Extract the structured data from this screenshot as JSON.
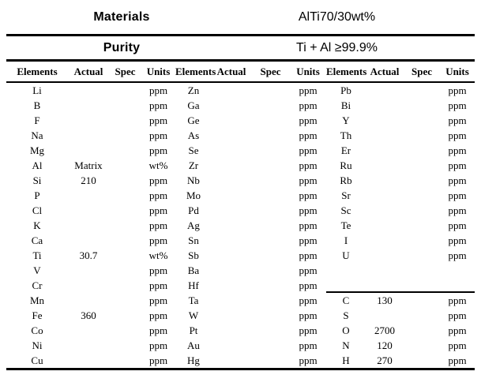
{
  "header": {
    "materials_label": "Materials",
    "materials_value": "AlTi70/30wt%",
    "purity_label": "Purity",
    "purity_value": "Ti + Al ≥99.9%"
  },
  "table": {
    "column_headers": [
      "Elements",
      "Actual",
      "Spec",
      "Units",
      "Elements",
      "Actual",
      "Spec",
      "Units",
      "Elements",
      "Actual",
      "Spec",
      "Units"
    ],
    "rows": [
      [
        "Li",
        "",
        "",
        "ppm",
        "Zn",
        "",
        "",
        "ppm",
        "Pb",
        "",
        "",
        "ppm"
      ],
      [
        "B",
        "",
        "",
        "ppm",
        "Ga",
        "",
        "",
        "ppm",
        "Bi",
        "",
        "",
        "ppm"
      ],
      [
        "F",
        "",
        "",
        "ppm",
        "Ge",
        "",
        "",
        "ppm",
        "Y",
        "",
        "",
        "ppm"
      ],
      [
        "Na",
        "",
        "",
        "ppm",
        "As",
        "",
        "",
        "ppm",
        "Th",
        "",
        "",
        "ppm"
      ],
      [
        "Mg",
        "",
        "",
        "ppm",
        "Se",
        "",
        "",
        "ppm",
        "Er",
        "",
        "",
        "ppm"
      ],
      [
        "Al",
        "Matrix",
        "",
        "wt%",
        "Zr",
        "",
        "",
        "ppm",
        "Ru",
        "",
        "",
        "ppm"
      ],
      [
        "Si",
        "210",
        "",
        "ppm",
        "Nb",
        "",
        "",
        "ppm",
        "Rb",
        "",
        "",
        "ppm"
      ],
      [
        "P",
        "",
        "",
        "ppm",
        "Mo",
        "",
        "",
        "ppm",
        "Sr",
        "",
        "",
        "ppm"
      ],
      [
        "Cl",
        "",
        "",
        "ppm",
        "Pd",
        "",
        "",
        "ppm",
        "Sc",
        "",
        "",
        "ppm"
      ],
      [
        "K",
        "",
        "",
        "ppm",
        "Ag",
        "",
        "",
        "ppm",
        "Te",
        "",
        "",
        "ppm"
      ],
      [
        "Ca",
        "",
        "",
        "ppm",
        "Sn",
        "",
        "",
        "ppm",
        "I",
        "",
        "",
        "ppm"
      ],
      [
        "Ti",
        "30.7",
        "",
        "wt%",
        "Sb",
        "",
        "",
        "ppm",
        "U",
        "",
        "",
        "ppm"
      ],
      [
        "V",
        "",
        "",
        "ppm",
        "Ba",
        "",
        "",
        "ppm",
        "",
        "",
        "",
        ""
      ],
      [
        "Cr",
        "",
        "",
        "ppm",
        "Hf",
        "",
        "",
        "ppm",
        "",
        "",
        "",
        ""
      ],
      [
        "Mn",
        "",
        "",
        "ppm",
        "Ta",
        "",
        "",
        "ppm",
        "C",
        "130",
        "",
        "ppm"
      ],
      [
        "Fe",
        "360",
        "",
        "ppm",
        "W",
        "",
        "",
        "ppm",
        "S",
        "",
        "",
        "ppm"
      ],
      [
        "Co",
        "",
        "",
        "ppm",
        "Pt",
        "",
        "",
        "ppm",
        "O",
        "2700",
        "",
        "ppm"
      ],
      [
        "Ni",
        "",
        "",
        "ppm",
        "Au",
        "",
        "",
        "ppm",
        "N",
        "120",
        "",
        "ppm"
      ],
      [
        "Cu",
        "",
        "",
        "ppm",
        "Hg",
        "",
        "",
        "ppm",
        "H",
        "270",
        "",
        "ppm"
      ]
    ],
    "right_subtable_divider": true,
    "divider_before_row": 15,
    "divider_start_column": 9
  },
  "colors": {
    "text": "#000000",
    "background": "#ffffff",
    "line": "#000000"
  }
}
